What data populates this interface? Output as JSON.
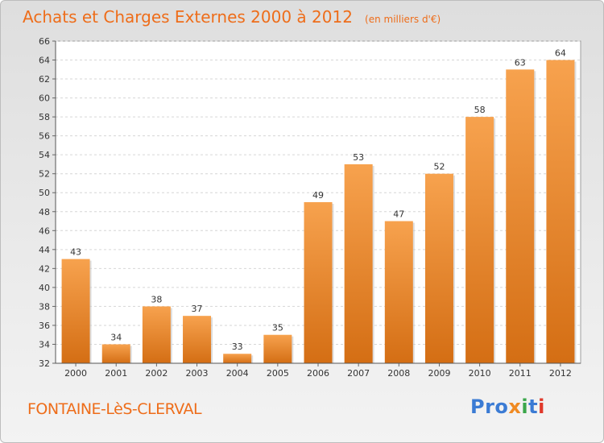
{
  "chart_data": {
    "type": "bar",
    "title": "Achats et Charges Externes 2000 à 2012",
    "subtitle": "(en milliers d'€)",
    "categories": [
      "2000",
      "2001",
      "2002",
      "2003",
      "2004",
      "2005",
      "2006",
      "2007",
      "2008",
      "2009",
      "2010",
      "2011",
      "2012"
    ],
    "values": [
      43,
      34,
      38,
      37,
      33,
      35,
      49,
      53,
      47,
      52,
      58,
      63,
      64
    ],
    "ylim": [
      32,
      66
    ],
    "yticks": [
      32,
      34,
      36,
      38,
      40,
      42,
      44,
      46,
      48,
      50,
      52,
      54,
      56,
      58,
      60,
      62,
      64,
      66
    ],
    "grid": true,
    "bar_color": "#f08a2c",
    "xlabel": "",
    "ylabel": ""
  },
  "footer": {
    "town": "FONTAINE-LèS-CLERVAL",
    "logo": [
      "Pro",
      "x",
      "i",
      "t",
      "i"
    ]
  }
}
